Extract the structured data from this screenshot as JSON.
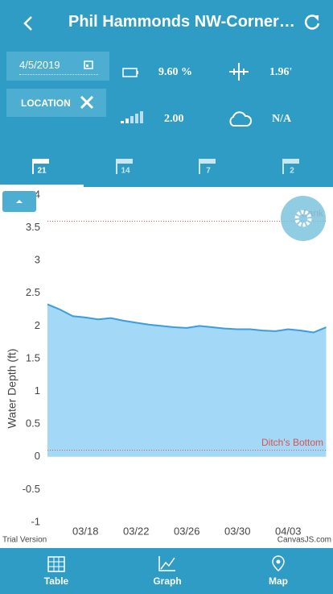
{
  "header": {
    "title": "Phil Hammonds NW-Corner…"
  },
  "controls": {
    "date": "4/5/2019",
    "location": "LOCATION"
  },
  "status": {
    "battery": "9.60 %",
    "level": "1.96'",
    "signal": "2.00",
    "weather": "N/A"
  },
  "tabs": [
    "21",
    "14",
    "7",
    "2"
  ],
  "nav": [
    "Table",
    "Graph",
    "Map"
  ],
  "chart_data": {
    "type": "area",
    "y_label": "Water Depth (ft)",
    "categories": [
      null,
      null,
      null,
      "03/18",
      null,
      null,
      null,
      "03/22",
      null,
      null,
      null,
      "03/26",
      null,
      null,
      null,
      "03/30",
      null,
      null,
      null,
      "04/03",
      null,
      null,
      null
    ],
    "values": [
      2.33,
      2.25,
      2.15,
      2.13,
      2.1,
      2.12,
      2.08,
      2.05,
      2.02,
      2.0,
      1.98,
      1.97,
      2.0,
      1.98,
      1.96,
      1.95,
      1.95,
      1.93,
      1.92,
      1.95,
      1.93,
      1.9,
      1.98
    ],
    "color": "#3d9be0",
    "fill": "#a3d8f7",
    "ylim": [
      -1,
      4
    ],
    "yticks": [
      -1,
      -0.5,
      0,
      0.5,
      1,
      1.5,
      2,
      2.5,
      3,
      3.5,
      4
    ],
    "grid": false,
    "strip_lines": [
      {
        "value": 3.6,
        "label": "Bank",
        "color": "#d9534f"
      },
      {
        "value": 0.1,
        "label": "Ditch's Bottom",
        "color": "#d9534f"
      }
    ],
    "credits": [
      "Trial Version",
      "CanvasJS.com"
    ]
  }
}
